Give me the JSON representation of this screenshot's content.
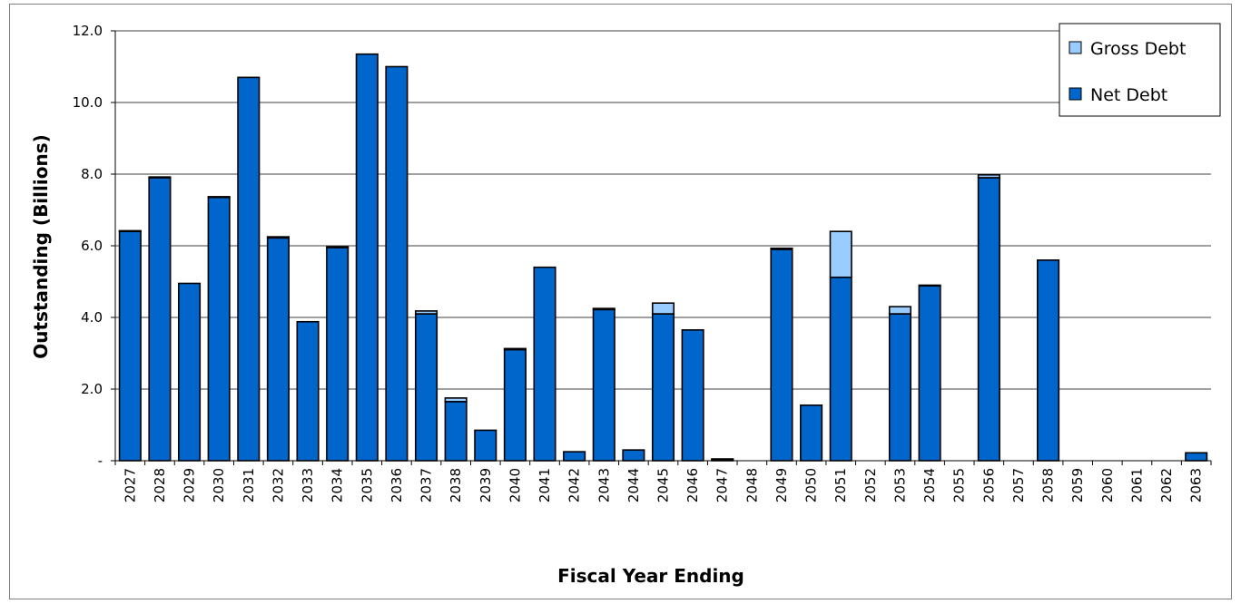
{
  "chart_data": {
    "type": "bar",
    "stacked": true,
    "title": "",
    "xlabel": "Fiscal Year Ending",
    "ylabel": "Outstanding (Billions)",
    "ylim": [
      0,
      12
    ],
    "yticks": [
      {
        "value": 0,
        "label": "-"
      },
      {
        "value": 2,
        "label": "2.0"
      },
      {
        "value": 4,
        "label": "4.0"
      },
      {
        "value": 6,
        "label": "6.0"
      },
      {
        "value": 8,
        "label": "8.0"
      },
      {
        "value": 10,
        "label": "10.0"
      },
      {
        "value": 12,
        "label": "12.0"
      }
    ],
    "grid": true,
    "legend_position": "top-right",
    "categories": [
      "2027",
      "2028",
      "2029",
      "2030",
      "2031",
      "2032",
      "2033",
      "2034",
      "2035",
      "2036",
      "2037",
      "2038",
      "2039",
      "2040",
      "2041",
      "2042",
      "2043",
      "2044",
      "2045",
      "2046",
      "2047",
      "2048",
      "2049",
      "2050",
      "2051",
      "2052",
      "2053",
      "2054",
      "2055",
      "2056",
      "2057",
      "2058",
      "2059",
      "2060",
      "2061",
      "2062",
      "2063"
    ],
    "series": [
      {
        "name": "Net Debt",
        "color": "#0066CC",
        "values": [
          6.4,
          7.9,
          4.95,
          7.35,
          10.7,
          6.22,
          3.88,
          5.95,
          11.35,
          11.0,
          4.1,
          1.65,
          0.85,
          3.1,
          5.4,
          0.25,
          4.22,
          0.3,
          4.1,
          3.65,
          0.03,
          0,
          5.9,
          1.55,
          5.12,
          0,
          4.1,
          4.88,
          0,
          7.9,
          0,
          5.6,
          0,
          0,
          0,
          0,
          0.22
        ]
      },
      {
        "name": "Gross Debt",
        "color": "#99CCFF",
        "values": [
          0.02,
          0.02,
          0,
          0.02,
          0,
          0.03,
          0,
          0.02,
          0,
          0,
          0.08,
          0.1,
          0,
          0.03,
          0,
          0,
          0.03,
          0,
          0.3,
          0,
          0.02,
          0,
          0.03,
          0,
          1.28,
          0,
          0.2,
          0.02,
          0,
          0.08,
          0,
          0,
          0,
          0,
          0,
          0,
          0
        ]
      }
    ]
  },
  "legend": {
    "items": [
      {
        "label": "Gross Debt",
        "color": "#99CCFF"
      },
      {
        "label": "Net Debt",
        "color": "#0066CC"
      }
    ]
  }
}
